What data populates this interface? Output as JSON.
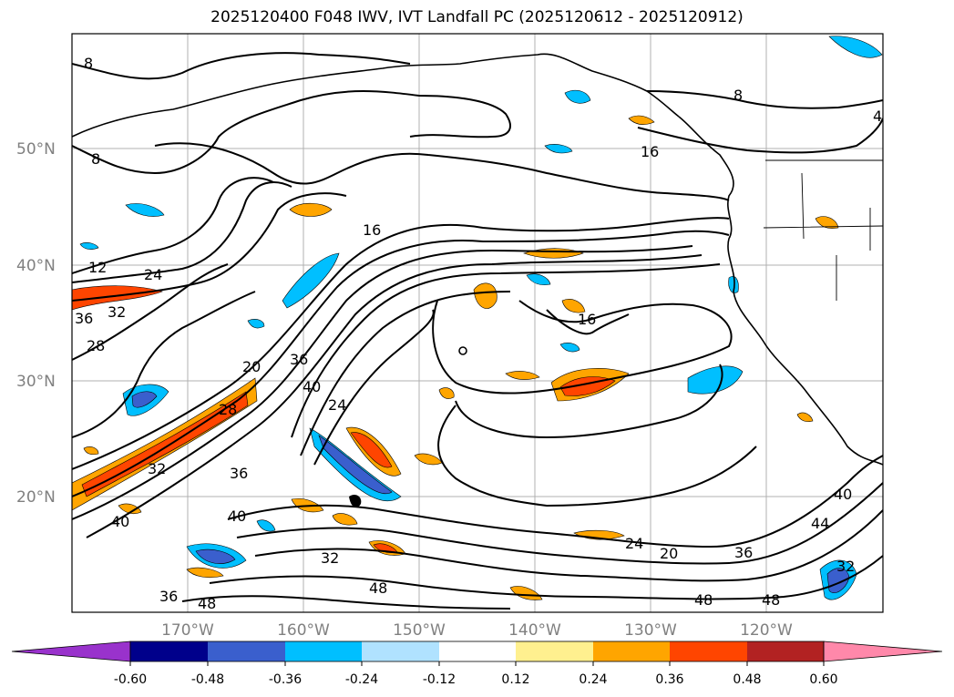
{
  "title": "2025120400 F048 IWV, IVT Landfall PC (2025120612 - 2025120912)",
  "latitude_labels": [
    "50°N",
    "40°N",
    "30°N",
    "20°N"
  ],
  "longitude_labels": [
    "170°W",
    "160°W",
    "150°W",
    "140°W",
    "130°W",
    "120°W"
  ],
  "contour_labels": [
    "8",
    "8",
    "8",
    "4",
    "16",
    "16",
    "16",
    "12",
    "24",
    "36",
    "32",
    "28",
    "20",
    "36",
    "40",
    "24",
    "28",
    "32",
    "36",
    "40",
    "32",
    "36",
    "48",
    "40",
    "48",
    "24",
    "20",
    "36",
    "44",
    "40",
    "48",
    "48",
    "32"
  ],
  "colorbar": {
    "tick_labels": [
      "-0.60",
      "-0.48",
      "-0.36",
      "-0.24",
      "-0.12",
      "0.12",
      "0.24",
      "0.36",
      "0.48",
      "0.60"
    ],
    "colors": [
      "#9932cc",
      "#00008b",
      "#3a5fcd",
      "#00bfff",
      "#b0e2ff",
      "#ffffff",
      "#fff08f",
      "#ffa500",
      "#ff4500",
      "#b22222",
      "#ff88aa"
    ]
  }
}
